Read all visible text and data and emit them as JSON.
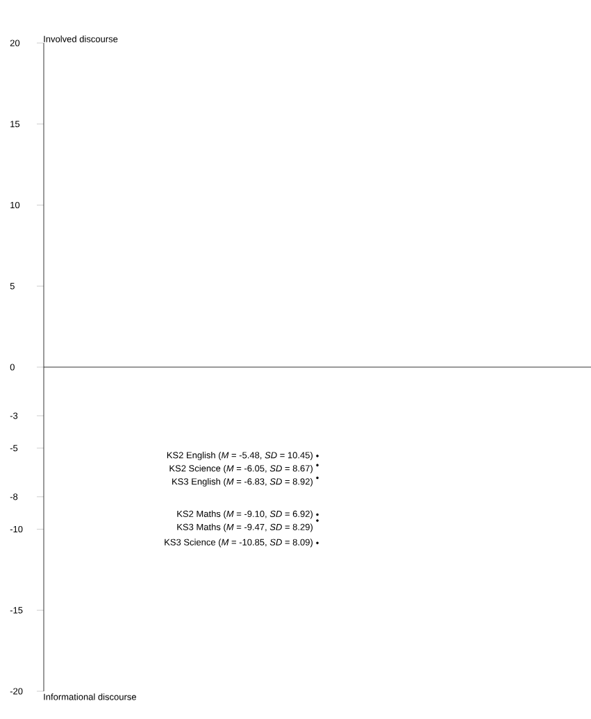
{
  "chart_data": {
    "type": "scatter",
    "categories": [
      null
    ],
    "marker": "circle",
    "ylim": [
      -20,
      20
    ],
    "yticks": [
      20,
      15,
      10,
      5,
      0,
      -3,
      -5,
      -8,
      -10,
      -15,
      -20
    ],
    "annotations": [
      "Involved discourse",
      "Informational discourse"
    ],
    "series": [
      {
        "name": "KS2 English (*M* = -5.48, *SD* = 10.45)",
        "values": [
          -5.48
        ]
      },
      {
        "name": "KS2 Science (*M* = -6.05, *SD* = 8.67)",
        "values": [
          -6.05
        ]
      },
      {
        "name": "KS3 English (*M* = -6.83, *SD* = 8.92)",
        "values": [
          -6.83
        ]
      },
      {
        "name": "KS2 Maths (*M* = -9.10, *SD* = 6.92)",
        "values": [
          -9.1
        ]
      },
      {
        "name": "KS3 Maths (*M* = -9.47, *SD* = 8.29)",
        "values": [
          -9.47
        ]
      },
      {
        "name": "KS3 Science (*M* = -10.85, *SD* = 8.09)",
        "values": [
          -10.85
        ]
      }
    ]
  }
}
